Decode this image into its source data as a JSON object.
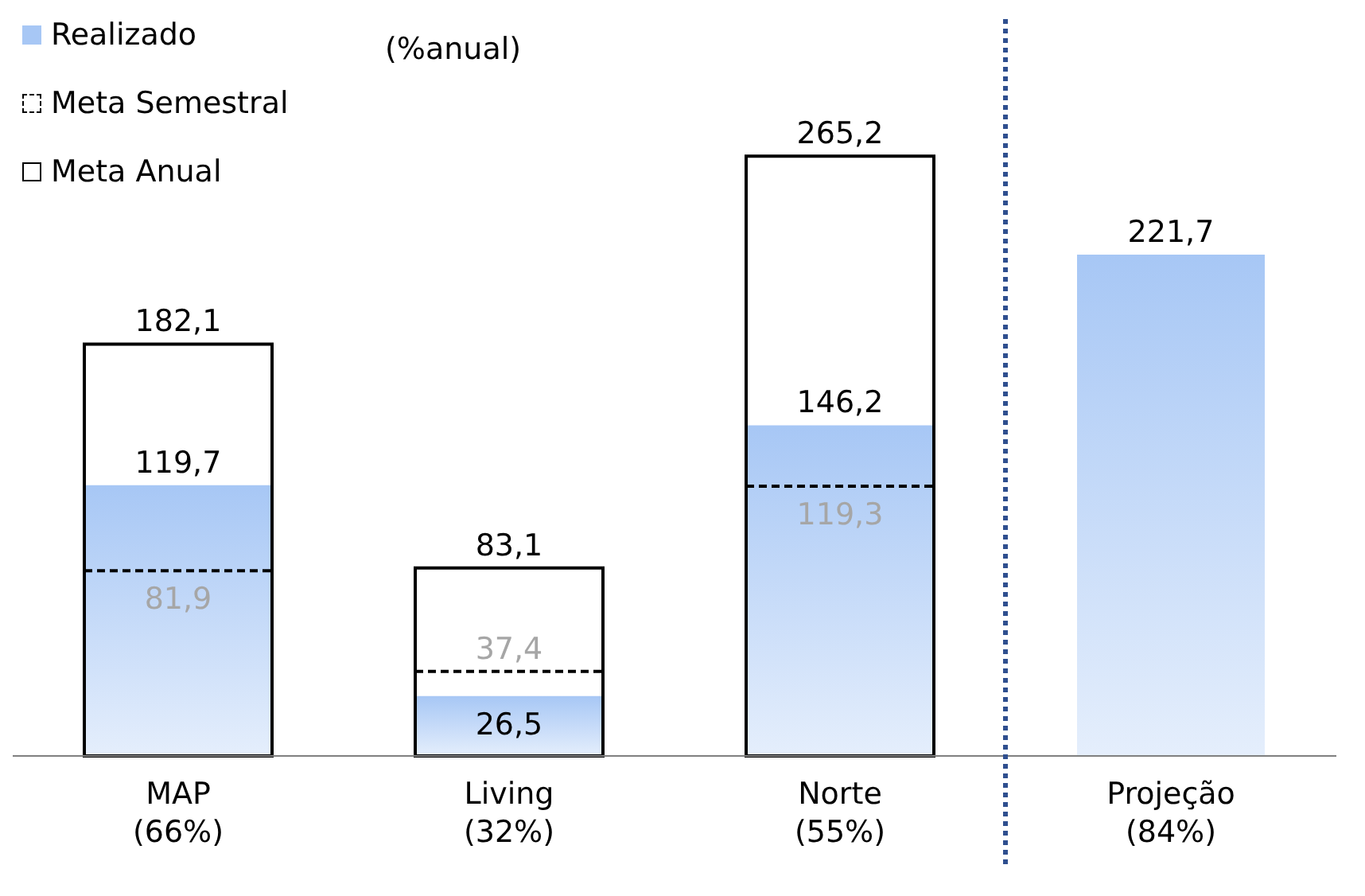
{
  "chart_data": {
    "type": "bar",
    "annotations": [
      "(%anual)"
    ],
    "categories": [
      "MAP\n(66%)",
      "Living\n(32%)",
      "Norte\n(55%)",
      "Projeção\n(84%)"
    ],
    "series": [
      {
        "name": "Realizado",
        "color": "#a7c7f5",
        "values": [
          119.7,
          26.5,
          146.2,
          221.7
        ],
        "value_labels": [
          "119,7",
          "26,5",
          "146,2",
          "221,7"
        ]
      },
      {
        "name": "Meta Semestral",
        "color": "#000000",
        "line_style": "dashed",
        "values": [
          81.9,
          37.4,
          119.3,
          null
        ],
        "value_labels": [
          "81,9",
          "37,4",
          "119,3",
          null
        ]
      },
      {
        "name": "Meta Anual",
        "color": "#000000",
        "line_style": "solid",
        "values": [
          182.1,
          83.1,
          265.2,
          null
        ],
        "value_labels": [
          "182,1",
          "83,1",
          "265,2",
          null
        ]
      }
    ],
    "legend": "top left"
  }
}
